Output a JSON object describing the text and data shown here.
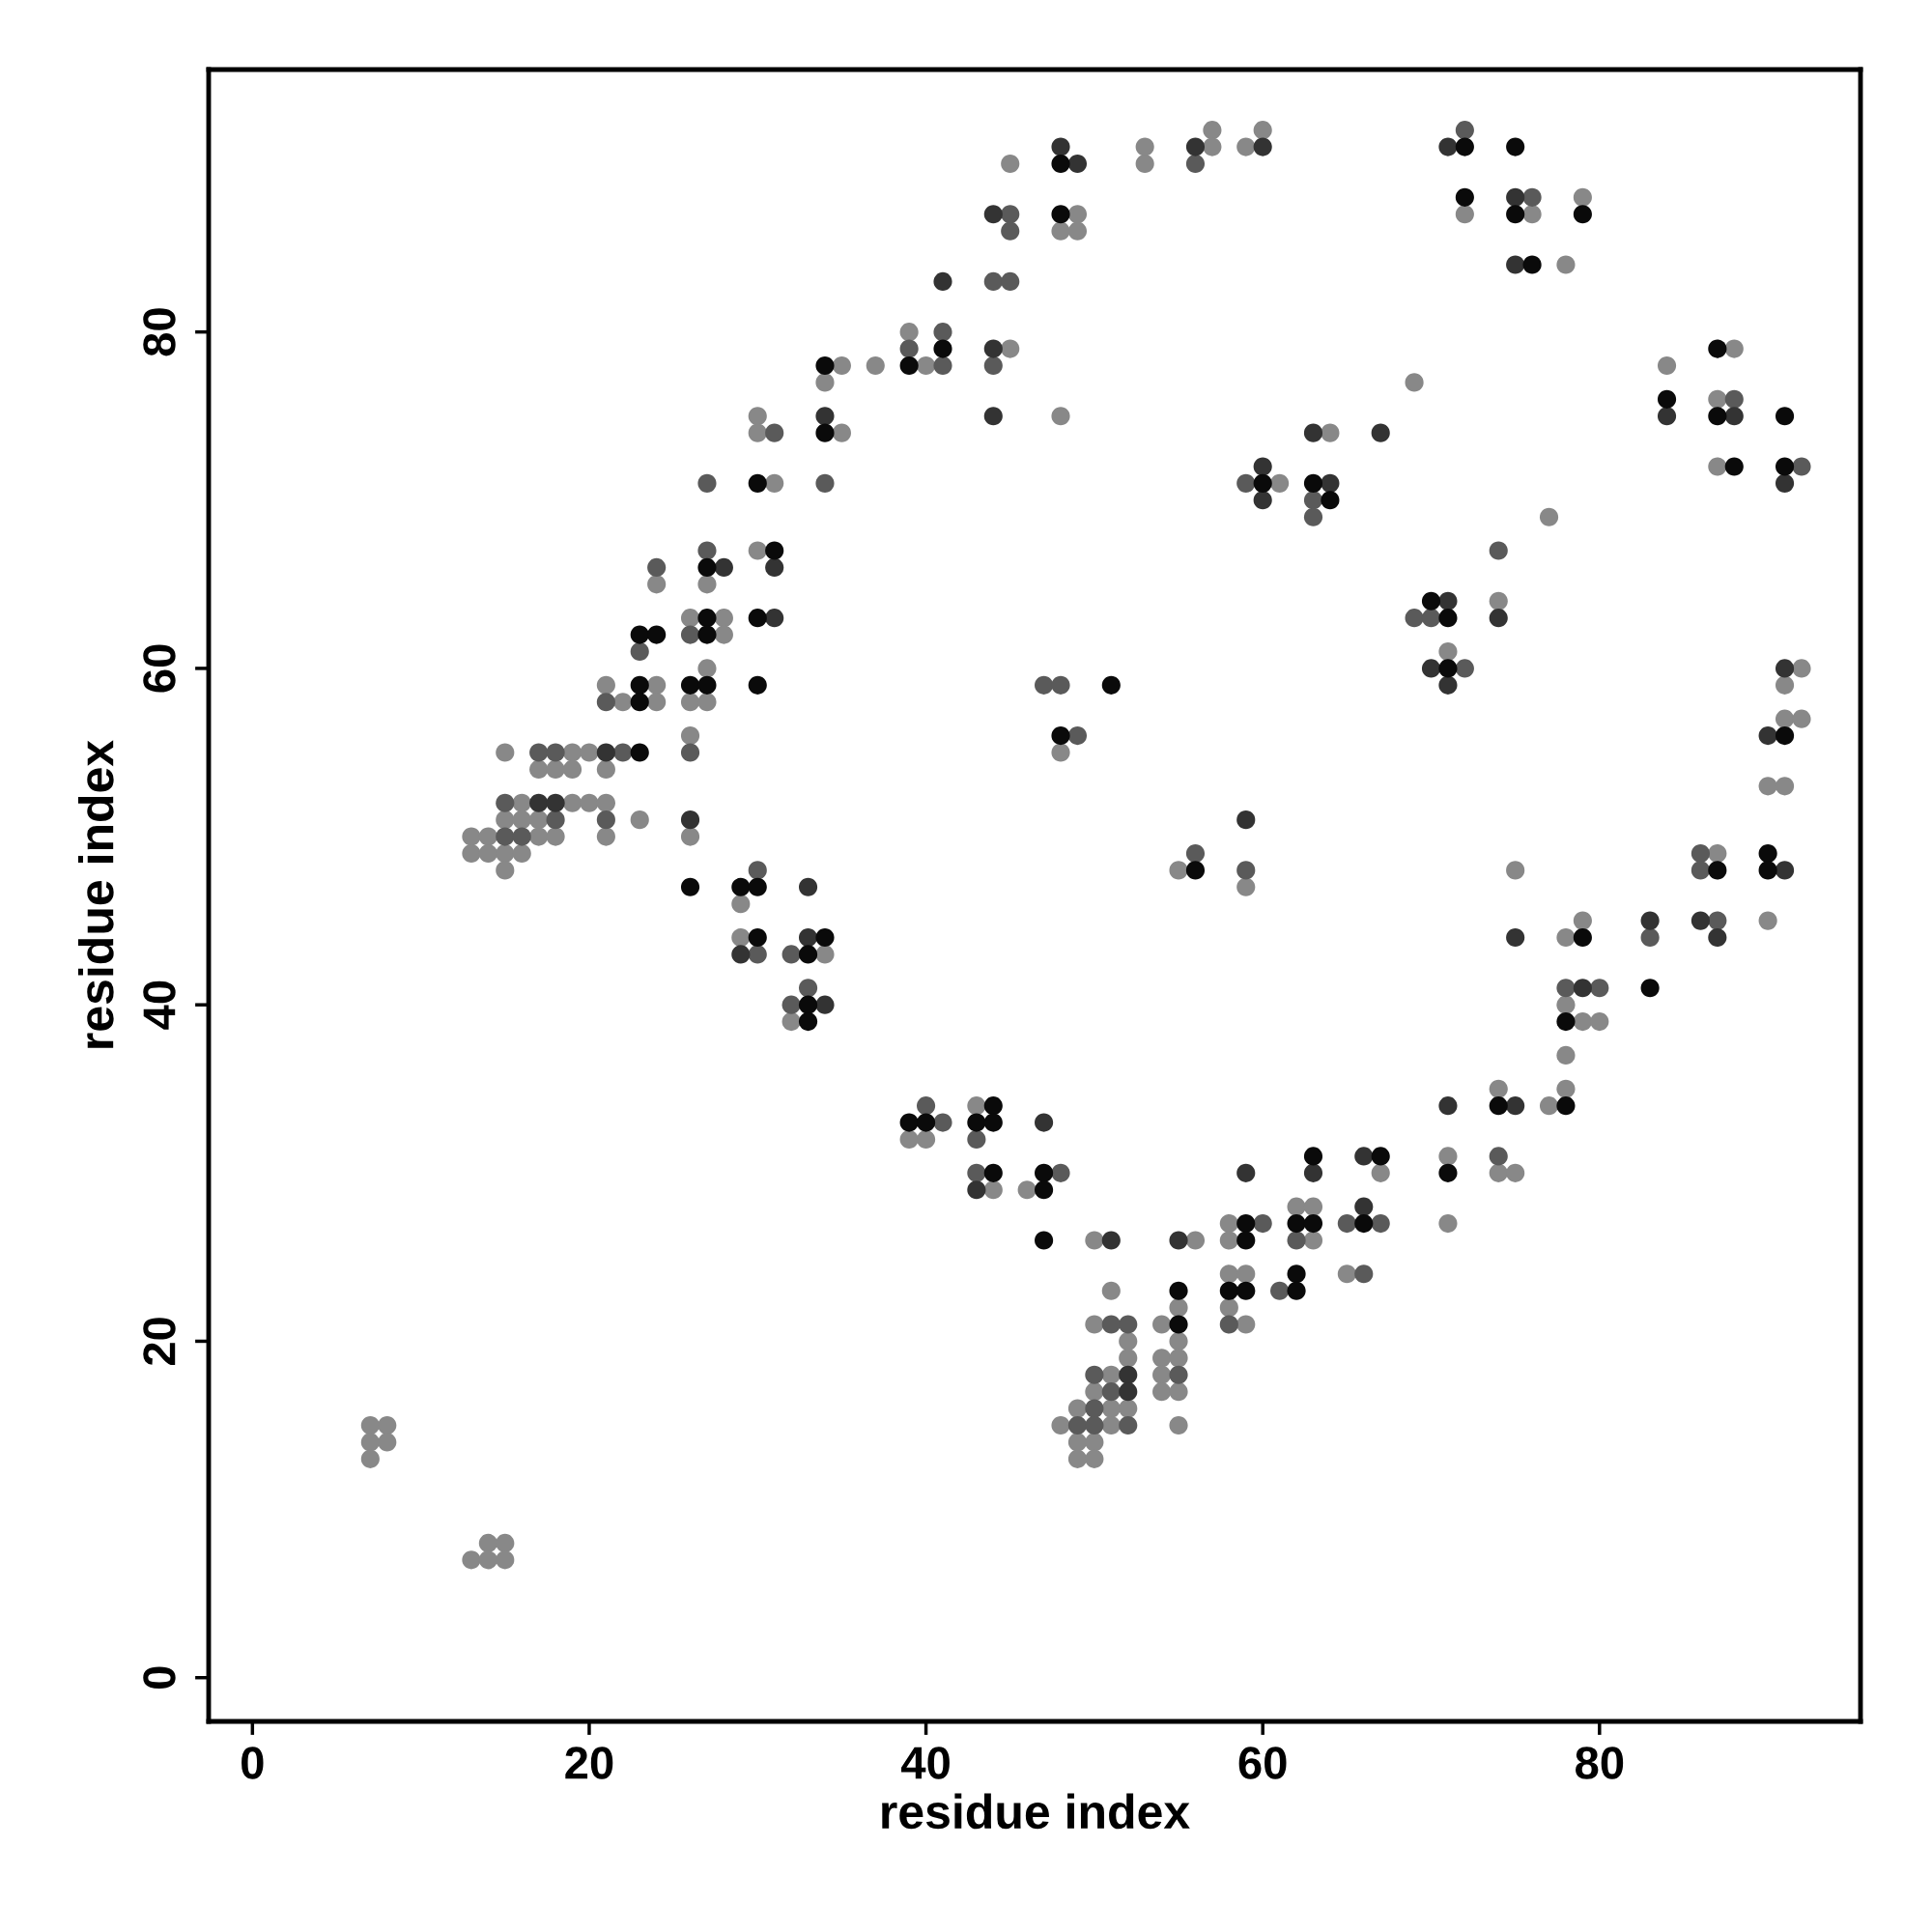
{
  "chart_data": {
    "type": "scatter",
    "xlabel": "residue index",
    "ylabel": "residue index",
    "xlim": [
      -2.6,
      95.5
    ],
    "ylim": [
      -2.6,
      95.6
    ],
    "xticks": [
      0,
      20,
      40,
      60,
      80
    ],
    "yticks": [
      0,
      20,
      40,
      60,
      80
    ],
    "grid": false,
    "marker": "circle",
    "series": [
      {
        "color": "#888888",
        "x": [
          7,
          7,
          7,
          8,
          8,
          13,
          13,
          13,
          14,
          14,
          14,
          14,
          15,
          15,
          15,
          15,
          15,
          15,
          16,
          16,
          16,
          17,
          17,
          17,
          18,
          18,
          19,
          19,
          19,
          20,
          20,
          21,
          21,
          21,
          21,
          22,
          23,
          24,
          24,
          24,
          26,
          26,
          26,
          26,
          27,
          27,
          27,
          28,
          28,
          29,
          29,
          30,
          30,
          30,
          31,
          32,
          34,
          34,
          35,
          35,
          37,
          39,
          39,
          40,
          40,
          43,
          44,
          45,
          45,
          46,
          48,
          48,
          48,
          48,
          49,
          49,
          49,
          49,
          49,
          50,
          50,
          50,
          50,
          50,
          51,
          51,
          51,
          51,
          52,
          52,
          52,
          53,
          53,
          54,
          54,
          54,
          54,
          55,
          55,
          55,
          55,
          55,
          55,
          56,
          57,
          57,
          58,
          58,
          58,
          58,
          59,
          59,
          59,
          59,
          60,
          61,
          62,
          63,
          63,
          64,
          65,
          67,
          69,
          71,
          71,
          71,
          72,
          74,
          74,
          74,
          75,
          75,
          76,
          77,
          77,
          78,
          78,
          78,
          78,
          78,
          79,
          79,
          79,
          80,
          84,
          87,
          87,
          87,
          88,
          90,
          90,
          91,
          91,
          91,
          92,
          92
        ],
        "values": [
          15,
          14,
          13,
          15,
          14,
          7,
          50,
          49,
          8,
          7,
          50,
          49,
          8,
          7,
          55,
          51,
          49,
          48,
          52,
          51,
          49,
          54,
          51,
          50,
          54,
          50,
          55,
          54,
          52,
          55,
          52,
          59,
          54,
          52,
          50,
          58,
          51,
          65,
          59,
          58,
          63,
          58,
          56,
          50,
          65,
          60,
          58,
          63,
          62,
          46,
          44,
          75,
          74,
          67,
          71,
          39,
          77,
          43,
          78,
          74,
          78,
          80,
          32,
          78,
          32,
          34,
          29,
          90,
          79,
          29,
          86,
          75,
          55,
          15,
          87,
          86,
          16,
          14,
          13,
          26,
          21,
          17,
          14,
          13,
          23,
          18,
          16,
          15,
          20,
          19,
          16,
          91,
          90,
          21,
          19,
          18,
          17,
          22,
          20,
          19,
          17,
          15,
          48,
          26,
          92,
          91,
          27,
          26,
          24,
          22,
          91,
          47,
          24,
          21,
          92,
          71,
          28,
          28,
          26,
          74,
          24,
          30,
          77,
          61,
          31,
          27,
          87,
          64,
          35,
          30,
          48,
          30,
          87,
          69,
          34,
          84,
          44,
          40,
          37,
          35,
          88,
          45,
          39,
          39,
          78,
          76,
          72,
          49,
          79,
          53,
          45,
          59,
          57,
          53,
          60,
          57
        ]
      },
      {
        "color": "#5a5a5a",
        "x": [
          15,
          15,
          16,
          17,
          18,
          18,
          21,
          21,
          22,
          23,
          24,
          26,
          26,
          27,
          27,
          30,
          30,
          31,
          32,
          32,
          33,
          34,
          39,
          40,
          41,
          41,
          41,
          43,
          43,
          44,
          44,
          45,
          45,
          45,
          47,
          48,
          48,
          49,
          49,
          50,
          50,
          50,
          51,
          51,
          52,
          52,
          55,
          56,
          56,
          58,
          59,
          59,
          60,
          61,
          62,
          63,
          63,
          65,
          66,
          67,
          69,
          70,
          72,
          72,
          74,
          74,
          76,
          78,
          80,
          83,
          86,
          86,
          87,
          88,
          92
        ],
        "values": [
          52,
          50,
          50,
          55,
          55,
          51,
          58,
          51,
          55,
          61,
          66,
          62,
          55,
          71,
          67,
          48,
          43,
          74,
          43,
          40,
          41,
          71,
          79,
          34,
          80,
          78,
          33,
          32,
          30,
          83,
          78,
          87,
          86,
          83,
          59,
          59,
          30,
          56,
          15,
          18,
          16,
          15,
          21,
          17,
          21,
          15,
          18,
          90,
          49,
          21,
          71,
          48,
          27,
          23,
          26,
          70,
          69,
          27,
          24,
          27,
          63,
          63,
          92,
          60,
          67,
          31,
          88,
          41,
          41,
          44,
          49,
          48,
          45,
          76,
          72
        ]
      },
      {
        "color": "#333333",
        "x": [
          17,
          18,
          21,
          26,
          28,
          29,
          31,
          31,
          33,
          33,
          34,
          34,
          41,
          43,
          44,
          44,
          44,
          47,
          48,
          49,
          51,
          52,
          52,
          55,
          56,
          59,
          59,
          60,
          60,
          60,
          63,
          63,
          64,
          66,
          66,
          67,
          70,
          71,
          71,
          71,
          71,
          74,
          75,
          75,
          75,
          75,
          79,
          83,
          84,
          86,
          87,
          88,
          90,
          91,
          91,
          91
        ],
        "values": [
          52,
          52,
          55,
          51,
          66,
          43,
          66,
          63,
          47,
          44,
          75,
          40,
          83,
          29,
          87,
          79,
          75,
          33,
          91,
          90,
          26,
          18,
          17,
          26,
          91,
          51,
          30,
          91,
          72,
          70,
          74,
          30,
          71,
          31,
          28,
          74,
          60,
          91,
          64,
          59,
          34,
          63,
          88,
          84,
          44,
          34,
          41,
          45,
          75,
          45,
          44,
          75,
          56,
          71,
          60,
          48
        ]
      },
      {
        "color": "#0a0a0a",
        "x": [
          23,
          23,
          23,
          23,
          24,
          26,
          26,
          27,
          27,
          27,
          27,
          29,
          30,
          30,
          30,
          30,
          30,
          31,
          33,
          33,
          33,
          34,
          34,
          34,
          39,
          39,
          40,
          41,
          43,
          44,
          44,
          44,
          47,
          47,
          47,
          48,
          48,
          48,
          51,
          55,
          55,
          56,
          58,
          59,
          59,
          59,
          60,
          62,
          62,
          62,
          63,
          63,
          63,
          64,
          66,
          67,
          70,
          71,
          71,
          71,
          72,
          72,
          74,
          75,
          75,
          76,
          78,
          78,
          79,
          79,
          83,
          84,
          87,
          87,
          87,
          88,
          90,
          90,
          91,
          91,
          91
        ],
        "values": [
          62,
          59,
          58,
          55,
          62,
          59,
          47,
          66,
          63,
          62,
          59,
          47,
          71,
          63,
          59,
          47,
          44,
          67,
          43,
          40,
          39,
          78,
          74,
          44,
          78,
          33,
          33,
          79,
          33,
          34,
          33,
          30,
          30,
          29,
          26,
          90,
          87,
          56,
          59,
          23,
          21,
          48,
          23,
          27,
          26,
          23,
          71,
          27,
          24,
          23,
          71,
          31,
          27,
          70,
          27,
          31,
          64,
          63,
          60,
          30,
          91,
          88,
          34,
          91,
          87,
          84,
          39,
          34,
          87,
          44,
          41,
          76,
          79,
          75,
          48,
          72,
          49,
          48,
          75,
          72,
          56
        ]
      }
    ]
  }
}
